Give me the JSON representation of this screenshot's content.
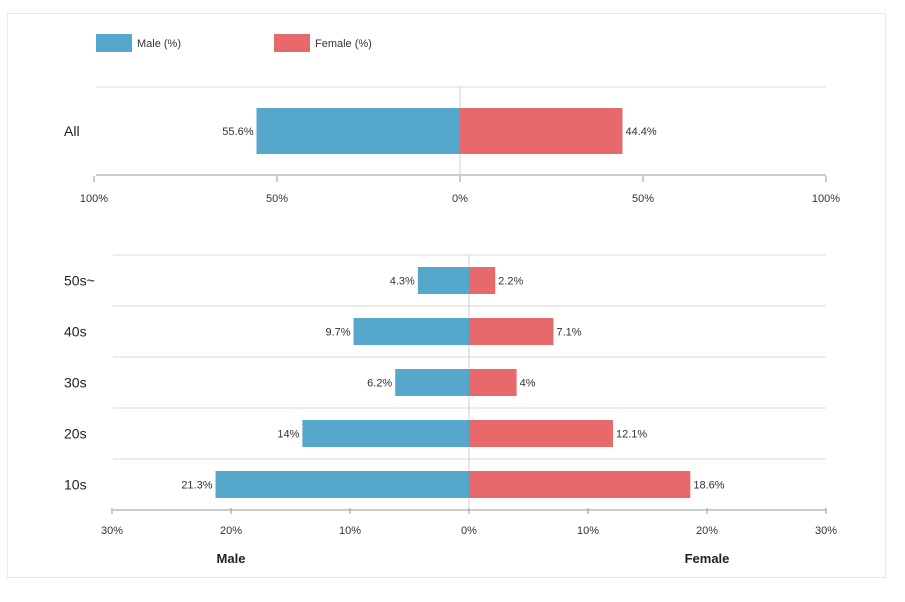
{
  "legend": [
    {
      "label": "Male (%)",
      "color": "#55a8cc"
    },
    {
      "label": "Female (%)",
      "color": "#e8696b"
    }
  ],
  "chart_data": [
    {
      "type": "bar",
      "orientation": "horizontal-diverging",
      "categories": [
        "All"
      ],
      "series": [
        {
          "name": "Male (%)",
          "values": [
            55.6
          ],
          "labels": [
            "55.6%"
          ],
          "color": "#55a8cc"
        },
        {
          "name": "Female (%)",
          "values": [
            44.4
          ],
          "labels": [
            "44.4%"
          ],
          "color": "#e8696b"
        }
      ],
      "xlim": [
        -100,
        100
      ],
      "ticks": [
        -100,
        -50,
        0,
        50,
        100
      ],
      "tick_labels": [
        "100%",
        "50%",
        "0%",
        "50%",
        "100%"
      ],
      "grid": true
    },
    {
      "type": "bar",
      "orientation": "horizontal-diverging",
      "categories": [
        "50s~",
        "40s",
        "30s",
        "20s",
        "10s"
      ],
      "series": [
        {
          "name": "Male (%)",
          "values": [
            4.3,
            9.7,
            6.2,
            14,
            21.3
          ],
          "labels": [
            "4.3%",
            "9.7%",
            "6.2%",
            "14%",
            "21.3%"
          ],
          "color": "#55a8cc"
        },
        {
          "name": "Female (%)",
          "values": [
            2.2,
            7.1,
            4,
            12.1,
            18.6
          ],
          "labels": [
            "2.2%",
            "7.1%",
            "4%",
            "12.1%",
            "18.6%"
          ],
          "color": "#e8696b"
        }
      ],
      "xlim": [
        -30,
        30
      ],
      "ticks": [
        -30,
        -20,
        -10,
        0,
        10,
        20,
        30
      ],
      "tick_labels": [
        "30%",
        "20%",
        "10%",
        "0%",
        "10%",
        "20%",
        "30%"
      ],
      "xlabel_left": "Male",
      "xlabel_right": "Female",
      "grid": true
    }
  ]
}
